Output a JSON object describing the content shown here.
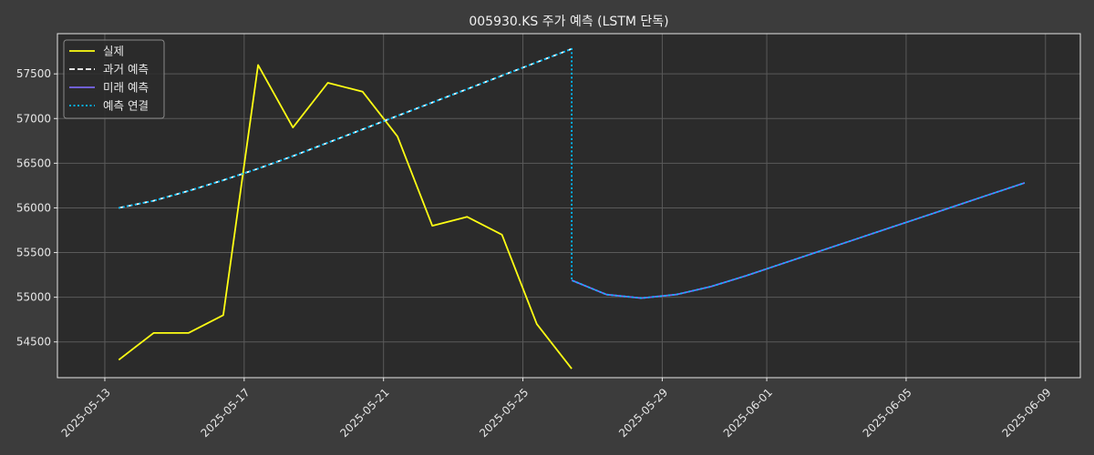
{
  "chart_data": {
    "type": "line",
    "title": "005930.KS 주가 예측 (LSTM 단독)",
    "xlabel": "",
    "ylabel": "",
    "ylim": [
      54100,
      57950
    ],
    "xlim": [
      "2025-05-12.6",
      "2025-06-09.8"
    ],
    "grid": true,
    "legend_position": "top-left",
    "y_ticks": [
      54500,
      55000,
      55500,
      56000,
      56500,
      57000,
      57500
    ],
    "x_ticks": [
      "2025-05-13",
      "2025-05-17",
      "2025-05-21",
      "2025-05-25",
      "2025-05-29",
      "2025-06-01",
      "2025-06-05",
      "2025-06-09"
    ],
    "x_tick_positions_days": [
      1,
      5,
      9,
      13,
      17,
      20,
      24,
      28
    ],
    "series": [
      {
        "name": "실제",
        "color": "#ffff14",
        "style": "solid",
        "x_days": [
          1.4,
          2.4,
          3.4,
          4.4,
          5.4,
          6.4,
          7.4,
          8.4,
          9.4,
          10.4,
          11.4,
          12.4,
          13.4,
          14.4,
          15.4
        ],
        "values": [
          54300,
          54600,
          54600,
          54800,
          57600,
          56900,
          57400,
          57300,
          56800,
          55800,
          55900,
          55700,
          54700,
          54200,
          null
        ]
      },
      {
        "name": "과거 예측",
        "color": "#ffffff",
        "style": "dashed",
        "x_days": [
          1.4,
          2.4,
          3.4,
          4.4,
          5.4,
          6.4,
          7.4,
          8.4,
          9.4,
          10.4,
          11.4,
          12.4,
          13.4,
          14.4
        ],
        "values": [
          56000,
          56080,
          56190,
          56310,
          56440,
          56580,
          56730,
          56880,
          57030,
          57180,
          57330,
          57480,
          57630,
          57780
        ]
      },
      {
        "name": "미래 예측",
        "color": "#7b68ee",
        "style": "solid",
        "x_days": [
          14.4,
          15.4,
          16.4,
          17.4,
          18.4,
          19.4,
          20.4,
          21.4,
          22.4,
          23.4,
          24.4,
          25.4,
          26.4,
          27.4
        ],
        "values": [
          55190,
          55030,
          54990,
          55030,
          55120,
          55240,
          55370,
          55500,
          55630,
          55760,
          55890,
          56020,
          56150,
          56280
        ]
      },
      {
        "name": "예측 연결",
        "color": "#00bfff",
        "style": "dotted",
        "x_days": [
          1.4,
          2.4,
          3.4,
          4.4,
          5.4,
          6.4,
          7.4,
          8.4,
          9.4,
          10.4,
          11.4,
          12.4,
          13.4,
          14.4,
          14.4,
          15.4,
          16.4,
          17.4,
          18.4,
          19.4,
          20.4,
          21.4,
          22.4,
          23.4,
          24.4,
          25.4,
          26.4,
          27.4
        ],
        "values": [
          56000,
          56080,
          56190,
          56310,
          56440,
          56580,
          56730,
          56880,
          57030,
          57180,
          57330,
          57480,
          57630,
          57780,
          55190,
          55030,
          54990,
          55030,
          55120,
          55240,
          55370,
          55500,
          55630,
          55760,
          55890,
          56020,
          56150,
          56280
        ]
      }
    ]
  },
  "colors": {
    "figure_bg": "#3c3c3c",
    "axes_bg": "#2b2b2b",
    "grid": "#5a5a5a",
    "text": "#e6e6e6"
  }
}
